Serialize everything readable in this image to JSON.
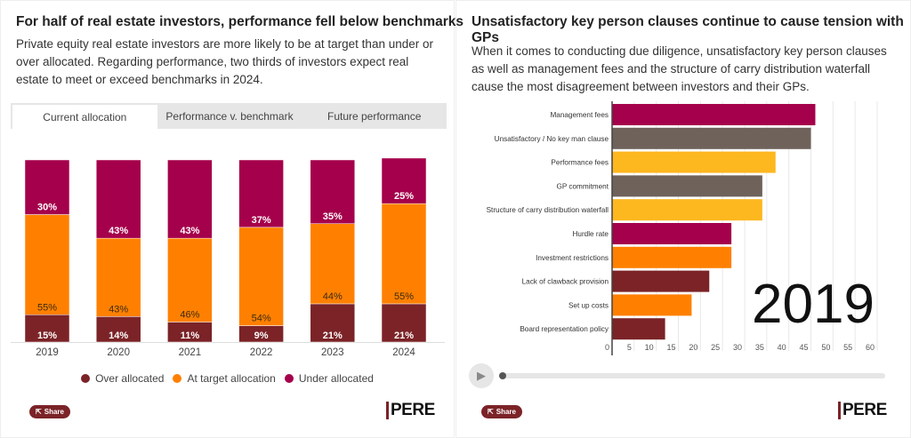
{
  "left": {
    "title": "For half of real estate investors, performance fell below benchmarks",
    "description": "Private equity real estate investors are more likely to be at target than under or over allocated. Regarding performance, two thirds of investors expect real estate to meet or exceed benchmarks in 2024.",
    "tabs": [
      "Current allocation",
      "Performance v. benchmark",
      "Future performance"
    ],
    "share_label": "Share",
    "logo": "PERE"
  },
  "right": {
    "title": "Unsatisfactory key person clauses continue to cause tension with GPs",
    "description": "When it comes to conducting due diligence, unsatisfactory key person clauses as well as management fees and the structure of carry distribution waterfall cause the most disagreement between investors and their GPs.",
    "share_label": "Share",
    "logo": "PERE",
    "play_icon": "play-icon",
    "timeline_progress": 0
  },
  "chart_data": [
    {
      "type": "bar",
      "stacked": true,
      "categories": [
        "2019",
        "2020",
        "2021",
        "2022",
        "2023",
        "2024"
      ],
      "series": [
        {
          "name": "Over allocated",
          "color": "#7b2327",
          "values": [
            15,
            14,
            11,
            9,
            21,
            21
          ]
        },
        {
          "name": "At target allocation",
          "color": "#ff8000",
          "values": [
            55,
            43,
            46,
            54,
            44,
            55
          ]
        },
        {
          "name": "Under allocated",
          "color": "#a5004b",
          "values": [
            30,
            43,
            43,
            37,
            35,
            25
          ]
        }
      ],
      "ylim": [
        0,
        100
      ],
      "legend": "bottom"
    },
    {
      "type": "bar",
      "orientation": "horizontal",
      "year_label": "2019",
      "categories": [
        "Management fees",
        "Unsatisfactory / No key man clause",
        "Performance fees",
        "GP commitment",
        "Structure of carry distribution waterfall",
        "Hurdle rate",
        "Investment restrictions",
        "Lack of clawback provision",
        "Set up costs",
        "Board representation policy"
      ],
      "values": [
        46,
        45,
        37,
        34,
        34,
        27,
        27,
        22,
        18,
        12
      ],
      "colors": [
        "#a5004b",
        "#6e625b",
        "#fdb71f",
        "#6e625b",
        "#fdb71f",
        "#a5004b",
        "#ff8000",
        "#7b2327",
        "#ff8000",
        "#7b2327"
      ],
      "xlim": [
        0,
        60
      ],
      "xticks": [
        0,
        5,
        10,
        15,
        20,
        25,
        30,
        35,
        40,
        45,
        50,
        55,
        60
      ],
      "grid": true
    }
  ]
}
